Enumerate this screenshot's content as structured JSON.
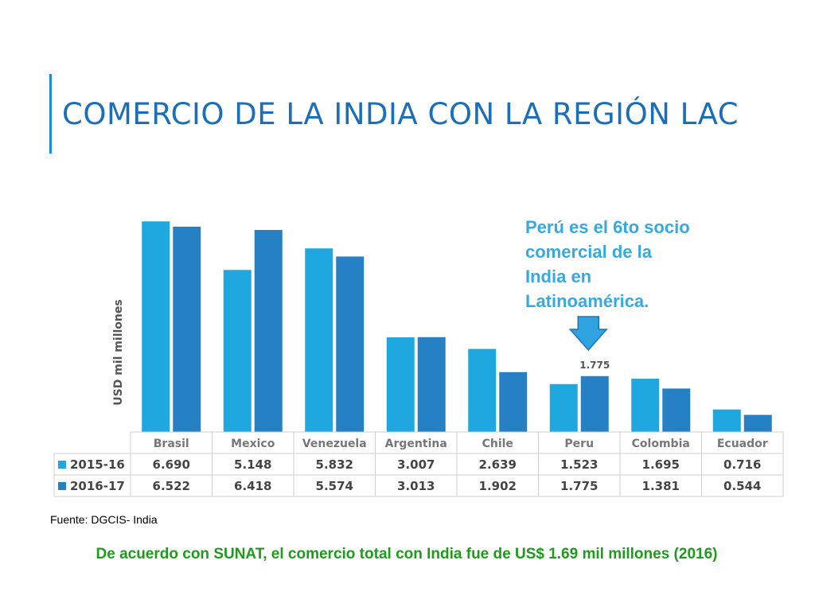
{
  "title": "COMERCIO DE LA INDIA CON LA REGIÓN LAC",
  "callout": "Perú es el 6to socio comercial de la India en Latinoamérica.",
  "source": "Fuente: DGCIS- India",
  "footnote": "De acuerdo con SUNAT, el comercio total con India fue de US$ 1.69 mil millones (2016)",
  "colors": {
    "title": "#1b6fb8",
    "series1": "#1fa8e0",
    "series2": "#2680c4",
    "callout": "#35a9e0",
    "footnote": "#1f9a1f"
  },
  "chart_data": {
    "type": "bar",
    "ylabel": "USD mil millones",
    "ylim": [
      0,
      7
    ],
    "categories": [
      "Brasil",
      "Mexico",
      "Venezuela",
      "Argentina",
      "Chile",
      "Peru",
      "Colombia",
      "Ecuador"
    ],
    "series": [
      {
        "name": "2015-16",
        "values": [
          6.69,
          5.148,
          5.832,
          3.007,
          2.639,
          1.523,
          1.695,
          0.716
        ],
        "labels": [
          "6.690",
          "5.148",
          "5.832",
          "3.007",
          "2.639",
          "1.523",
          "1.695",
          "0.716"
        ]
      },
      {
        "name": "2016-17",
        "values": [
          6.522,
          6.418,
          5.574,
          3.013,
          1.902,
          1.775,
          1.381,
          0.544
        ],
        "labels": [
          "6.522",
          "6.418",
          "5.574",
          "3.013",
          "1.902",
          "1.775",
          "1.381",
          "0.544"
        ]
      }
    ],
    "annotation": {
      "category": "Peru",
      "series": 1,
      "label": "1.775"
    },
    "data_table": true
  }
}
